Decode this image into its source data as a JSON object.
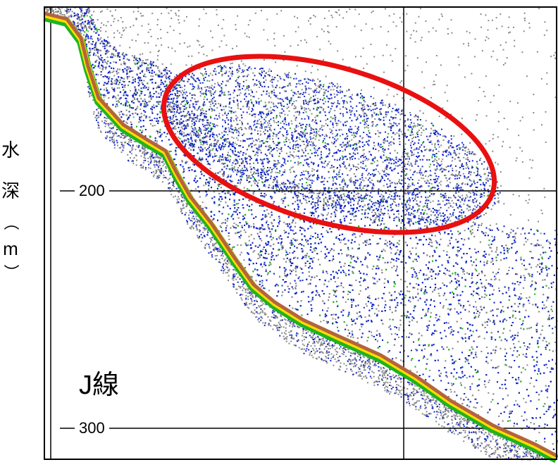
{
  "chart_data": {
    "type": "heatmap",
    "title": "",
    "xlabel": "",
    "ylabel": "水深（m）",
    "y_ticks": [
      200,
      300
    ],
    "y_tick_labels": [
      "200",
      "300"
    ],
    "ylim": [
      145,
      310
    ],
    "y_inverted": true,
    "grid": true,
    "annotation": "J線",
    "highlight_shape": "ellipse",
    "colors": {
      "background": "#ffffff",
      "weak_echo": "#8a8a8a",
      "medium_echo": "#1428c8",
      "strong_echo": "#1eb41e",
      "very_strong_echo": "#ffdc00",
      "seabed": "#b4643c",
      "highlight": "#e81010",
      "grid": "#000000"
    }
  }
}
